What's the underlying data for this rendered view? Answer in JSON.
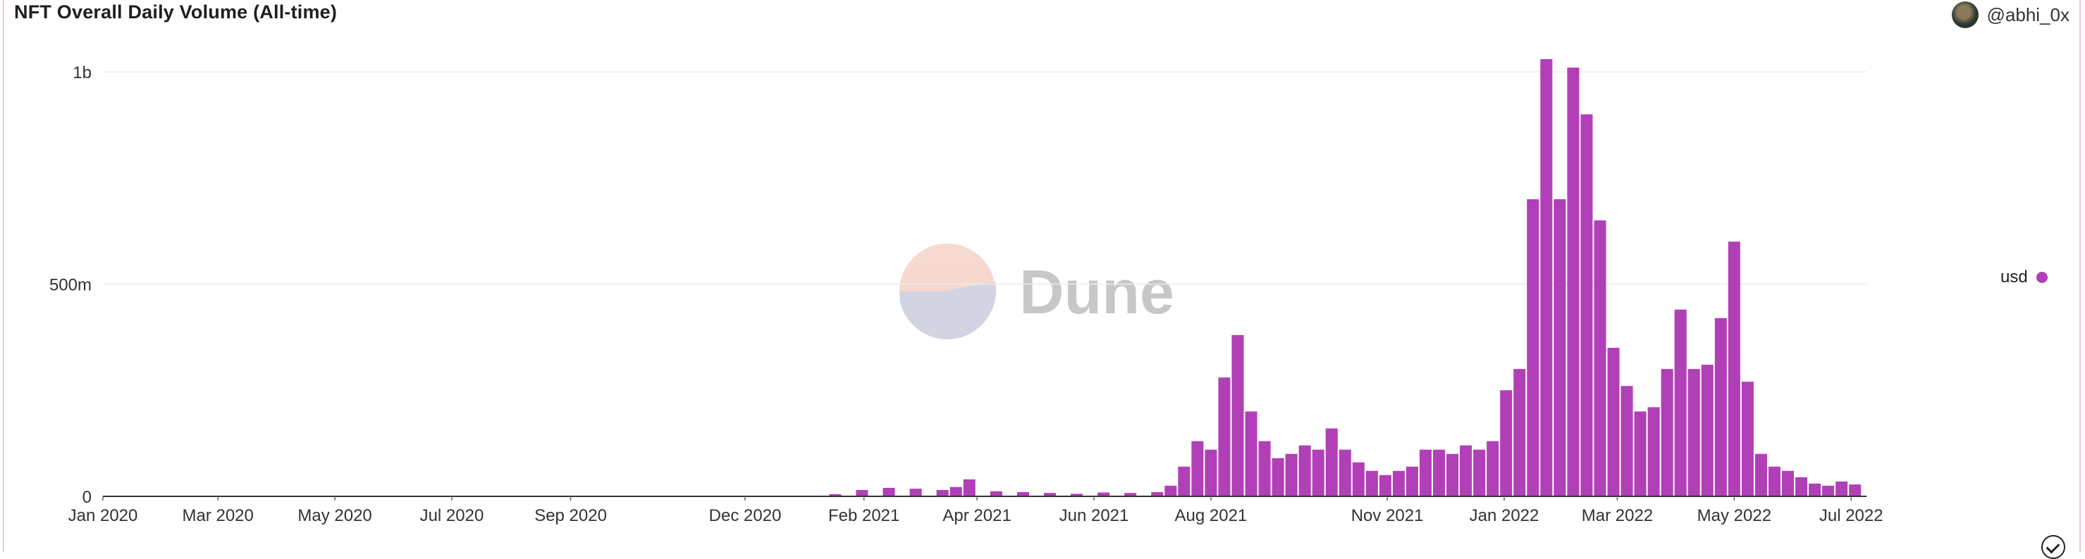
{
  "header": {
    "title": "NFT Overall Daily Volume (All-time)",
    "author": "@abhi_0x"
  },
  "watermark": {
    "text": "Dune"
  },
  "chart_data": {
    "type": "bar",
    "title": "NFT Overall Daily Volume (All-time)",
    "xlabel": "",
    "ylabel": "",
    "y_ticks": [
      "0",
      "500m",
      "1b"
    ],
    "ylim": [
      0,
      1030000000
    ],
    "x_ticks": [
      "Jan 2020",
      "Mar 2020",
      "May 2020",
      "Jul 2020",
      "Sep 2020",
      "Dec 2020",
      "Feb 2021",
      "Apr 2021",
      "Jun 2021",
      "Aug 2021",
      "Nov 2021",
      "Jan 2022",
      "Mar 2022",
      "May 2022",
      "Jul 2022"
    ],
    "x_range": [
      "2020-01-01",
      "2022-07-09"
    ],
    "grid": true,
    "legend_position": "right",
    "series": [
      {
        "name": "usd",
        "color": "#b13fb7",
        "sampling": "approximate weekly values",
        "x": [
          "2020-01-05",
          "2020-03-01",
          "2020-05-03",
          "2020-07-05",
          "2020-09-06",
          "2020-11-01",
          "2020-12-27",
          "2021-01-17",
          "2021-01-31",
          "2021-02-14",
          "2021-02-28",
          "2021-03-14",
          "2021-03-21",
          "2021-03-28",
          "2021-04-11",
          "2021-04-25",
          "2021-05-09",
          "2021-05-23",
          "2021-06-06",
          "2021-06-20",
          "2021-07-04",
          "2021-07-11",
          "2021-07-18",
          "2021-07-25",
          "2021-08-01",
          "2021-08-08",
          "2021-08-15",
          "2021-08-22",
          "2021-08-29",
          "2021-09-05",
          "2021-09-12",
          "2021-09-19",
          "2021-09-26",
          "2021-10-03",
          "2021-10-10",
          "2021-10-17",
          "2021-10-24",
          "2021-10-31",
          "2021-11-07",
          "2021-11-14",
          "2021-11-21",
          "2021-11-28",
          "2021-12-05",
          "2021-12-12",
          "2021-12-19",
          "2021-12-26",
          "2022-01-02",
          "2022-01-09",
          "2022-01-16",
          "2022-01-23",
          "2022-01-30",
          "2022-02-06",
          "2022-02-13",
          "2022-02-20",
          "2022-02-27",
          "2022-03-06",
          "2022-03-13",
          "2022-03-20",
          "2022-03-27",
          "2022-04-03",
          "2022-04-10",
          "2022-04-17",
          "2022-04-24",
          "2022-05-01",
          "2022-05-08",
          "2022-05-15",
          "2022-05-22",
          "2022-05-29",
          "2022-06-05",
          "2022-06-12",
          "2022-06-19",
          "2022-06-26",
          "2022-07-03"
        ],
        "values": [
          0,
          0,
          0,
          100000,
          300000,
          600000,
          1500000,
          5000000,
          15000000,
          20000000,
          18000000,
          15000000,
          22000000,
          40000000,
          12000000,
          10000000,
          8000000,
          6000000,
          9000000,
          8000000,
          10000000,
          25000000,
          70000000,
          130000000,
          110000000,
          280000000,
          380000000,
          200000000,
          130000000,
          90000000,
          100000000,
          120000000,
          110000000,
          160000000,
          110000000,
          80000000,
          60000000,
          50000000,
          60000000,
          70000000,
          110000000,
          110000000,
          100000000,
          120000000,
          110000000,
          130000000,
          250000000,
          300000000,
          700000000,
          1030000000,
          700000000,
          1010000000,
          900000000,
          650000000,
          350000000,
          260000000,
          200000000,
          210000000,
          300000000,
          440000000,
          300000000,
          310000000,
          420000000,
          600000000,
          270000000,
          100000000,
          70000000,
          60000000,
          45000000,
          30000000,
          25000000,
          35000000,
          28000000
        ]
      }
    ]
  }
}
